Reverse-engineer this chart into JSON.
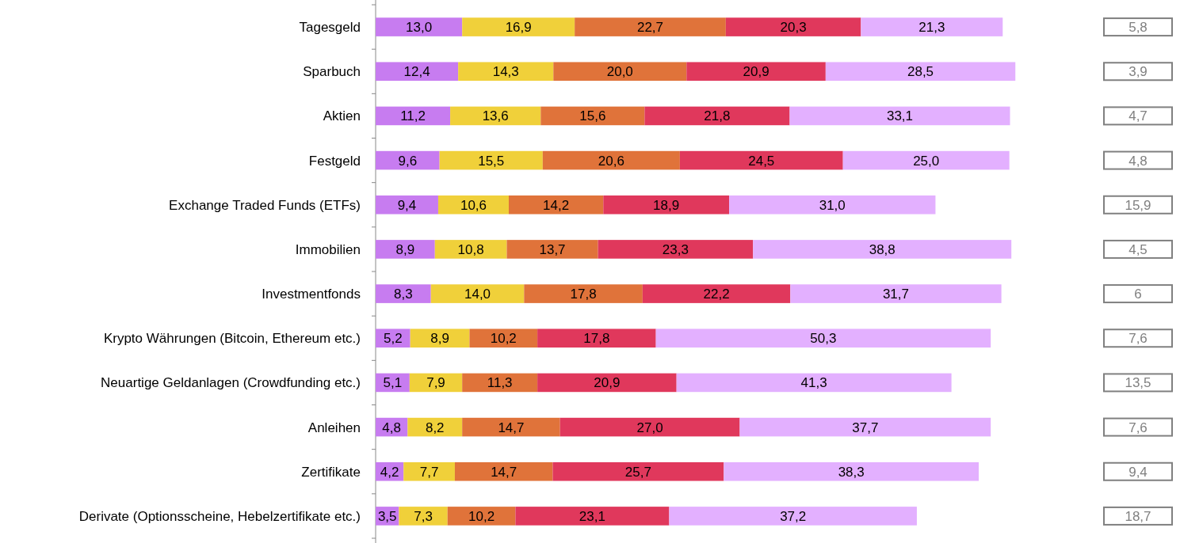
{
  "chart_data": {
    "type": "bar",
    "orientation": "horizontal",
    "stacked": true,
    "categories": [
      "Tagesgeld",
      "Sparbuch",
      "Aktien",
      "Festgeld",
      "Exchange Traded Funds (ETFs)",
      "Immobilien",
      "Investmentfonds",
      "Krypto Währungen (Bitcoin, Ethereum etc.)",
      "Neuartige Geldanlagen (Crowdfunding etc.)",
      "Anleihen",
      "Zertifikate",
      "Derivate (Optionsscheine, Hebelzertifikate etc.)"
    ],
    "series": [
      {
        "color": "#c77cf0",
        "values": [
          13.0,
          12.4,
          11.2,
          9.6,
          9.4,
          8.9,
          8.3,
          5.2,
          5.1,
          4.8,
          4.2,
          3.5
        ],
        "value_labels": [
          "13,0",
          "12,4",
          "11,2",
          "9,6",
          "9,4",
          "8,9",
          "8,3",
          "5,2",
          "5,1",
          "4,8",
          "4,2",
          "3,5"
        ]
      },
      {
        "color": "#f0d03a",
        "values": [
          16.9,
          14.3,
          13.6,
          15.5,
          10.6,
          10.8,
          14.0,
          8.9,
          7.9,
          8.2,
          7.7,
          7.3
        ],
        "value_labels": [
          "16,9",
          "14,3",
          "13,6",
          "15,5",
          "10,6",
          "10,8",
          "14,0",
          "8,9",
          "7,9",
          "8,2",
          "7,7",
          "7,3"
        ]
      },
      {
        "color": "#e0733a",
        "values": [
          22.7,
          20.0,
          15.6,
          20.6,
          14.2,
          13.7,
          17.8,
          10.2,
          11.3,
          14.7,
          14.7,
          10.2
        ],
        "value_labels": [
          "22,7",
          "20,0",
          "15,6",
          "20,6",
          "14,2",
          "13,7",
          "17,8",
          "10,2",
          "11,3",
          "14,7",
          "14,7",
          "10,2"
        ]
      },
      {
        "color": "#e0385c",
        "values": [
          20.3,
          20.9,
          21.8,
          24.5,
          18.9,
          23.3,
          22.2,
          17.8,
          20.9,
          27.0,
          25.7,
          23.1
        ],
        "value_labels": [
          "20,3",
          "20,9",
          "21,8",
          "24,5",
          "18,9",
          "23,3",
          "22,2",
          "17,8",
          "20,9",
          "27,0",
          "25,7",
          "23,1"
        ]
      },
      {
        "color": "#e3b0ff",
        "values": [
          21.3,
          28.5,
          33.1,
          25.0,
          31.0,
          38.8,
          31.7,
          50.3,
          41.3,
          37.7,
          38.3,
          37.2
        ],
        "value_labels": [
          "21,3",
          "28,5",
          "33,1",
          "25,0",
          "31,0",
          "38,8",
          "31,7",
          "50,3",
          "41,3",
          "37,7",
          "38,3",
          "37,2"
        ]
      }
    ],
    "annotations": [
      "5,8",
      "3,9",
      "4,7",
      "4,8",
      "15,9",
      "4,5",
      "6",
      "7,6",
      "13,5",
      "7,6",
      "9,4",
      "18,7"
    ]
  }
}
